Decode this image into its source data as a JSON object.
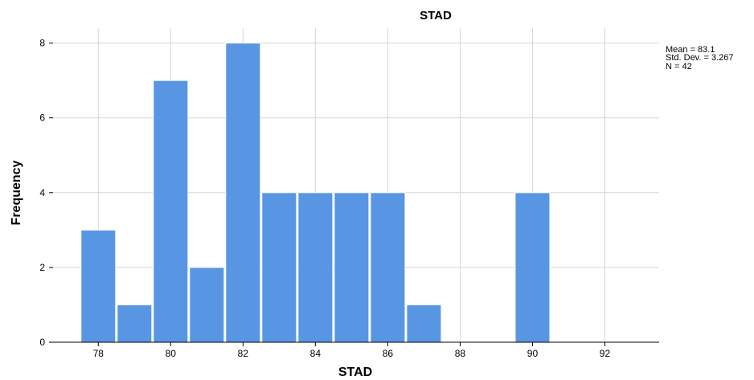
{
  "chart_data": {
    "type": "bar",
    "title": "STAD",
    "xlabel": "STAD",
    "ylabel": "Frequency",
    "bin_width": 1,
    "bins": [
      {
        "center": 78,
        "value": 3
      },
      {
        "center": 79,
        "value": 1
      },
      {
        "center": 80,
        "value": 7
      },
      {
        "center": 81,
        "value": 2
      },
      {
        "center": 82,
        "value": 8
      },
      {
        "center": 83,
        "value": 4
      },
      {
        "center": 84,
        "value": 4
      },
      {
        "center": 85,
        "value": 4
      },
      {
        "center": 86,
        "value": 4
      },
      {
        "center": 87,
        "value": 1
      },
      {
        "center": 88,
        "value": 0
      },
      {
        "center": 89,
        "value": 0
      },
      {
        "center": 90,
        "value": 4
      },
      {
        "center": 91,
        "value": 0
      },
      {
        "center": 92,
        "value": 0
      }
    ],
    "x_ticks": [
      "78",
      "80",
      "82",
      "84",
      "86",
      "88",
      "90",
      "92"
    ],
    "x_tick_values": [
      78,
      80,
      82,
      84,
      86,
      88,
      90,
      92
    ],
    "y_ticks": [
      "0",
      "2",
      "4",
      "6",
      "8"
    ],
    "y_tick_values": [
      0,
      2,
      4,
      6,
      8
    ],
    "xlim": [
      76.75,
      93.5
    ],
    "ylim": [
      0,
      8.4
    ],
    "grid": true,
    "bar_color": "#5896e4",
    "stats": [
      "Mean = 83.1",
      "Std. Dev. = 3.267",
      "N = 42"
    ]
  }
}
